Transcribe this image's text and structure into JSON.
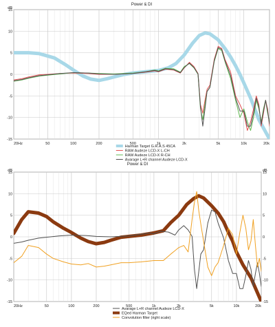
{
  "colors": {
    "background": "#ffffff",
    "grid": "#c8c8c8",
    "axis": "#7f7f7f",
    "text": "#222222"
  },
  "chart_data": [
    {
      "type": "line",
      "title": "Power & DI",
      "ylabel": "dB",
      "x_scale": "log",
      "xlim": [
        20,
        20000
      ],
      "ylim": [
        -15,
        15
      ],
      "x_ticks": [
        20,
        50,
        100,
        200,
        500,
        1000,
        2000,
        5000,
        10000,
        20000
      ],
      "x_tick_labels": [
        "20Hz",
        "50",
        "100",
        "200",
        "500",
        "1k",
        "2k",
        "5k",
        "10k",
        "20k"
      ],
      "y_ticks": [
        -15,
        -10,
        -5,
        0,
        5,
        10,
        15
      ],
      "grid": true,
      "legend_position": "bottom-center",
      "series": [
        {
          "name": "Harman Target G.R.A.S 45CA",
          "color": "#a8d8e8",
          "width": 5,
          "x": [
            20,
            30,
            40,
            60,
            80,
            100,
            130,
            160,
            200,
            250,
            300,
            400,
            500,
            700,
            1000,
            1300,
            1600,
            2000,
            2500,
            3000,
            3500,
            4000,
            5000,
            6000,
            7000,
            8000,
            9000,
            10000,
            12000,
            15000,
            20000
          ],
          "y": [
            5,
            5,
            4.8,
            3.8,
            2.3,
            1,
            -0.4,
            -1.1,
            -1.4,
            -1.0,
            -0.6,
            0.0,
            0.3,
            0.6,
            0.9,
            1.5,
            2.5,
            4.5,
            7.2,
            9.0,
            9.6,
            9.4,
            8.0,
            6.0,
            4.0,
            2.0,
            0.0,
            -2.0,
            -5.5,
            -10.5,
            -15
          ]
        },
        {
          "name": "RAW Audeze LCD-X L-CH",
          "color": "#e05050",
          "width": 1,
          "x": [
            20,
            25,
            30,
            40,
            50,
            70,
            100,
            150,
            200,
            300,
            500,
            700,
            900,
            1000,
            1200,
            1500,
            1800,
            2000,
            2300,
            2600,
            2900,
            3100,
            3300,
            3500,
            3700,
            4000,
            4500,
            5000,
            5500,
            6000,
            7000,
            8000,
            9000,
            10000,
            11000,
            12000,
            13000,
            14000,
            15000,
            16000,
            17000,
            18000,
            19000,
            20000
          ],
          "y": [
            -1.3,
            -1.0,
            -0.6,
            -0.1,
            0.0,
            0.2,
            0.3,
            0.2,
            0.0,
            0.0,
            0.2,
            0.5,
            0.8,
            0.6,
            1.2,
            1.0,
            0.3,
            1.5,
            2.8,
            1.8,
            0.2,
            -7.0,
            -9.0,
            -6.0,
            -3.5,
            -2.5,
            3.5,
            6.5,
            6.0,
            3.5,
            0.5,
            -5.0,
            -7.0,
            -9.0,
            -13.0,
            -11.0,
            -8.0,
            -5.0,
            -7.0,
            -12.0,
            -9.0,
            -6.0,
            -8.0,
            -12.0
          ]
        },
        {
          "name": "RAW Audeze LCD-X R-CH",
          "color": "#60b850",
          "width": 1,
          "x": [
            20,
            25,
            30,
            40,
            50,
            70,
            100,
            150,
            200,
            300,
            500,
            700,
            900,
            1000,
            1200,
            1500,
            1800,
            2000,
            2300,
            2600,
            2900,
            3100,
            3300,
            3500,
            3700,
            4000,
            4500,
            5000,
            5500,
            6000,
            7000,
            8000,
            9000,
            10000,
            11000,
            12000,
            13000,
            14000,
            15000,
            16000,
            17000,
            18000,
            19000,
            20000
          ],
          "y": [
            -1.6,
            -1.3,
            -0.9,
            -0.4,
            -0.2,
            0.1,
            0.4,
            0.3,
            0.2,
            0.1,
            0.3,
            0.6,
            1.0,
            0.8,
            1.4,
            1.3,
            0.5,
            1.8,
            2.5,
            1.5,
            0.0,
            -8.0,
            -10.5,
            -7.0,
            -4.0,
            -3.0,
            3.0,
            6.0,
            5.5,
            3.0,
            -1.0,
            -6.0,
            -10.0,
            -8.0,
            -11.0,
            -13.0,
            -10.0,
            -6.0,
            -8.0,
            -11.0,
            -8.0,
            -6.0,
            -9.0,
            -11.0
          ]
        },
        {
          "name": "Avarage L+R channel Audeze LCD-X",
          "color": "#505050",
          "width": 1,
          "x": [
            20,
            25,
            30,
            40,
            50,
            70,
            100,
            150,
            200,
            300,
            500,
            700,
            900,
            1000,
            1200,
            1500,
            1800,
            2000,
            2300,
            2600,
            2900,
            3100,
            3300,
            3500,
            3700,
            4000,
            4500,
            5000,
            5500,
            6000,
            7000,
            8000,
            9000,
            10000,
            11000,
            12000,
            13000,
            14000,
            15000,
            16000,
            17000,
            18000,
            19000,
            20000
          ],
          "y": [
            -1.5,
            -1.2,
            -0.8,
            -0.3,
            -0.1,
            0.2,
            0.4,
            0.3,
            0.1,
            0.0,
            0.2,
            0.6,
            0.9,
            0.7,
            1.3,
            1.1,
            0.4,
            1.6,
            2.6,
            1.6,
            0.1,
            -7.5,
            -12.0,
            -8.0,
            -4.0,
            -3.0,
            3.2,
            6.2,
            5.8,
            3.2,
            -0.3,
            -5.5,
            -8.5,
            -8.5,
            -12.0,
            -12.0,
            -9.0,
            -5.5,
            -7.5,
            -11.5,
            -8.5,
            -6.0,
            -8.5,
            -11.5
          ]
        }
      ]
    },
    {
      "type": "line",
      "title": "Power & DI",
      "ylabel": "dB",
      "y2label": "dB",
      "x_scale": "log",
      "xlim": [
        20,
        20000
      ],
      "ylim": [
        -15,
        15
      ],
      "y2lim": [
        -15,
        15
      ],
      "x_ticks": [
        20,
        50,
        100,
        200,
        500,
        1000,
        2000,
        5000,
        10000,
        20000
      ],
      "x_tick_labels": [
        "20Hz",
        "50",
        "100",
        "200",
        "500",
        "1k",
        "2k",
        "5k",
        "10k",
        "20k"
      ],
      "y_ticks": [
        -15,
        -10,
        -5,
        0,
        5,
        10,
        15
      ],
      "grid": true,
      "legend_position": "bottom-center",
      "series": [
        {
          "name": "Avarage L+R channel Audeze LCD-X",
          "color": "#505050",
          "width": 1,
          "x": [
            20,
            25,
            30,
            40,
            50,
            70,
            100,
            150,
            200,
            300,
            500,
            700,
            900,
            1000,
            1200,
            1500,
            1800,
            2000,
            2300,
            2600,
            2900,
            3100,
            3300,
            3500,
            3700,
            4000,
            4500,
            5000,
            5500,
            6000,
            7000,
            8000,
            9000,
            10000,
            11000,
            12000,
            13000,
            14000,
            15000,
            16000,
            17000,
            18000,
            19000,
            20000
          ],
          "y": [
            -1.5,
            -1.2,
            -0.8,
            -0.3,
            -0.1,
            0.2,
            0.4,
            0.3,
            0.1,
            0.0,
            0.2,
            0.6,
            0.9,
            0.7,
            1.3,
            1.1,
            0.4,
            1.6,
            2.6,
            1.6,
            0.1,
            -7.5,
            -12.0,
            -8.0,
            -4.0,
            -3.0,
            3.2,
            6.2,
            5.8,
            3.2,
            -0.3,
            -5.5,
            -8.5,
            -8.5,
            -12.0,
            -12.0,
            -9.0,
            -5.5,
            -7.5,
            -11.5,
            -8.5,
            -6.0,
            -8.5,
            -11.5
          ]
        },
        {
          "name": "EQed Harman Target",
          "color": "#8b3a10",
          "width": 5,
          "x": [
            20,
            25,
            30,
            40,
            50,
            60,
            80,
            100,
            130,
            160,
            200,
            250,
            300,
            400,
            500,
            700,
            1000,
            1300,
            1600,
            2000,
            2500,
            3000,
            3500,
            4000,
            5000,
            6000,
            7000,
            8000,
            9000,
            10000,
            12000,
            15000,
            20000
          ],
          "y": [
            0.8,
            4.0,
            5.8,
            5.5,
            4.7,
            3.5,
            2.0,
            1.0,
            -0.3,
            -1.1,
            -1.6,
            -1.3,
            -0.8,
            -0.1,
            0.1,
            0.4,
            0.9,
            1.4,
            3.3,
            5.0,
            7.5,
            8.8,
            9.5,
            9.0,
            7.2,
            5.5,
            3.5,
            1.0,
            -1.0,
            -3.5,
            -6.5,
            -9.5,
            -15
          ]
        },
        {
          "name": "Convolution filter (right scale)",
          "color": "#f0a020",
          "width": 1,
          "axis": "right",
          "x": [
            20,
            25,
            30,
            40,
            50,
            60,
            80,
            100,
            130,
            160,
            200,
            250,
            300,
            400,
            500,
            700,
            1000,
            1300,
            1600,
            2000,
            2300,
            2600,
            2900,
            3100,
            3300,
            3500,
            3700,
            4000,
            4500,
            5000,
            5500,
            6000,
            7000,
            8000,
            9000,
            10000,
            11000,
            12000,
            13000,
            14000,
            15000,
            16000,
            17000,
            18000,
            19000,
            20000
          ],
          "y": [
            -6.0,
            -4.5,
            -2.0,
            -2.5,
            -4.0,
            -5.0,
            -5.8,
            -6.3,
            -6.5,
            -6.2,
            -7.0,
            -6.8,
            -6.5,
            -6.0,
            -6.0,
            -5.8,
            -5.5,
            -5.5,
            -4.0,
            -2.5,
            -2.0,
            -3.5,
            4.0,
            8.0,
            10.5,
            6.0,
            3.0,
            -1.0,
            -7.0,
            -9.0,
            -7.0,
            -6.0,
            -2.0,
            2.0,
            0.5,
            -4.0,
            1.0,
            5.0,
            2.0,
            -3.0,
            -1.0,
            4.0,
            -2.0,
            -7.0,
            -5.0,
            -8.0
          ]
        }
      ]
    }
  ]
}
